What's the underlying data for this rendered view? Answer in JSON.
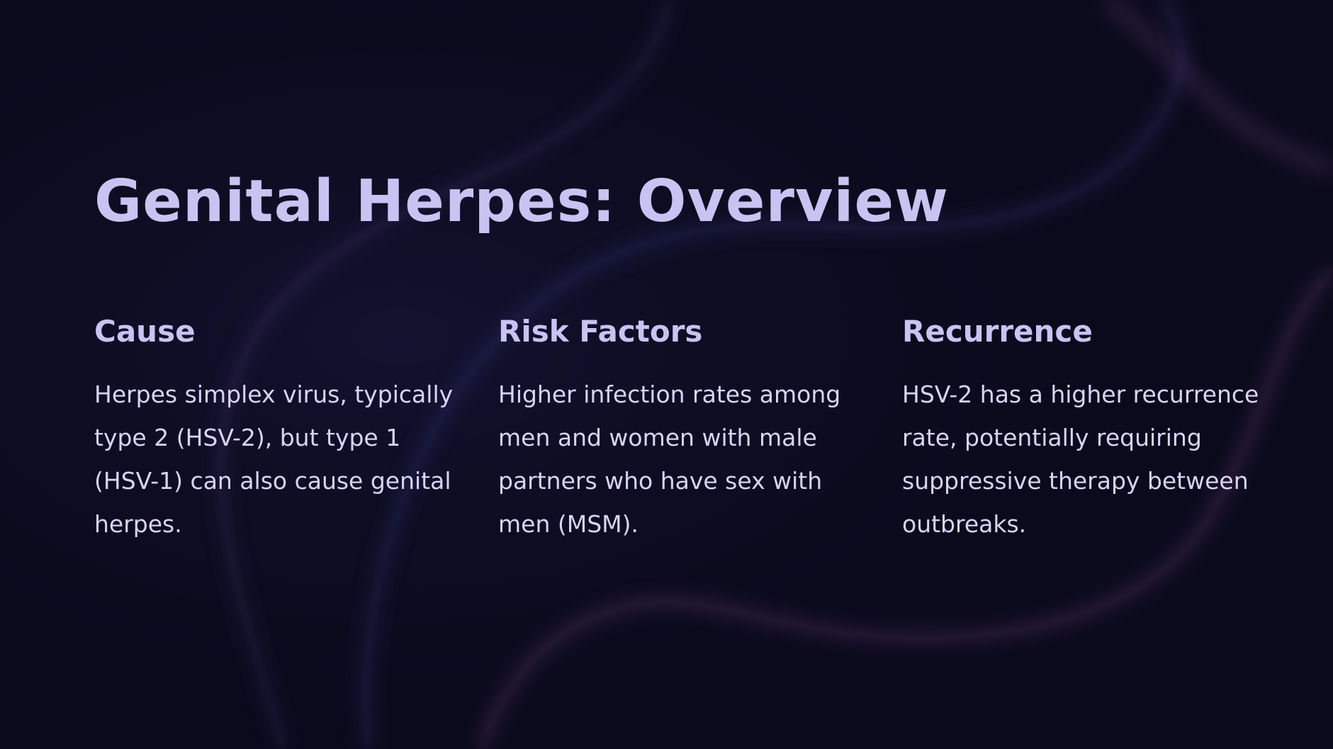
{
  "slide": {
    "title": "Genital Herpes: Overview",
    "colors": {
      "background": "#0b0a1c",
      "heading": "#c9c3f2",
      "body_text": "#d9d3f3",
      "wave_highlight_purple": "#8a4a8a",
      "wave_highlight_blue": "#3a3f8f"
    },
    "columns": [
      {
        "heading": "Cause",
        "lines": [
          "Herpes simplex virus, typically",
          "type 2 (HSV-2), but type 1",
          "(HSV-1) can also cause genital",
          "herpes."
        ]
      },
      {
        "heading": "Risk Factors",
        "lines": [
          "Higher infection rates among",
          "men and women with male",
          "partners who have sex with",
          "men (MSM)."
        ]
      },
      {
        "heading": "Recurrence",
        "lines": [
          "HSV-2 has a higher recurrence",
          "rate, potentially requiring",
          "suppressive therapy between",
          "outbreaks."
        ]
      }
    ]
  }
}
